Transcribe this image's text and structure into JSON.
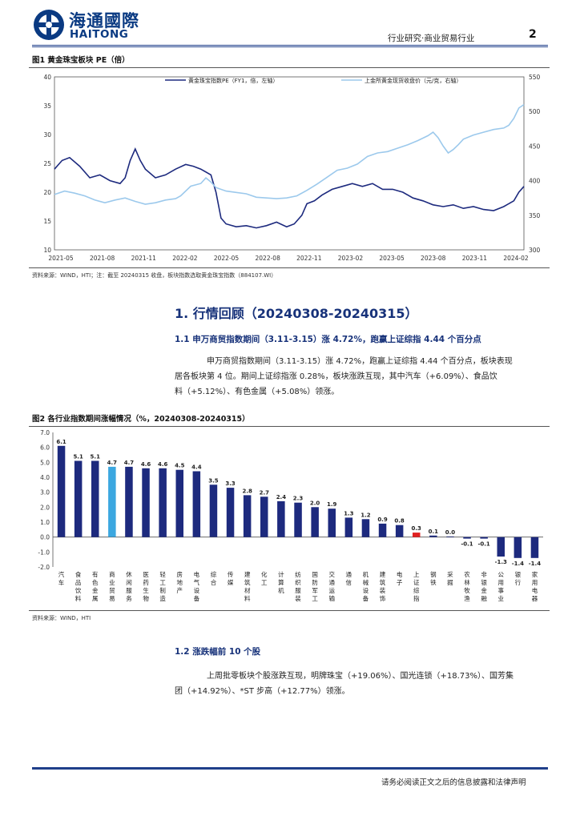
{
  "header": {
    "brand_cn": "海通國際",
    "brand_en": "HAITONG",
    "report_type": "行业研究·商业贸易行业",
    "page_number": "2"
  },
  "figure1": {
    "title": "图1  黄金珠宝板块 PE（倍）",
    "source": "资料来源：WIND，HTI；注：截至 20240315 收盘，板块指数选取黄金珠宝指数（884107.WI）"
  },
  "section1": {
    "title": "1.  行情回顾（20240308-20240315）"
  },
  "section1_1": {
    "title": "1.1 申万商贸指数期间（3.11-3.15）涨 4.72%，跑赢上证综指 4.44 个百分点",
    "para_line1": "申万商贸指数期间（3.11-3.15）涨 4.72%，跑赢上证综指 4.44 个百分点，板块表现",
    "para_line2": "居各板块第 4 位。期间上证综指涨 0.28%，板块涨跌互现，其中汽车（+6.09%）、食品饮",
    "para_line3": "料（+5.12%）、有色金属（+5.08%）领涨。"
  },
  "figure2": {
    "title": "图2  各行业指数期间涨幅情况（%，20240308-20240315）",
    "source": "资料来源：WIND，HTI"
  },
  "section1_2": {
    "title": "1.2 涨跌幅前 10 个股",
    "para_line1": "上周批零板块个股涨跌互现，明牌珠宝（+19.06%）、国光连锁（+18.73%）、国芳集",
    "para_line2": "团（+14.92%）、*ST 步高（+12.77%）领涨。"
  },
  "footer": {
    "disclaimer": "请务必阅读正文之后的信息披露和法律声明"
  },
  "chart_data": [
    {
      "type": "line",
      "title": "黄金珠宝板块 PE（倍）",
      "x_ticks": [
        "2021-05",
        "2021-08",
        "2021-11",
        "2022-02",
        "2022-05",
        "2022-08",
        "2022-11",
        "2023-02",
        "2023-05",
        "2023-08",
        "2023-11",
        "2024-02"
      ],
      "ylim_left": [
        10,
        40
      ],
      "yticks_left": [
        "40",
        "35",
        "30",
        "25",
        "20",
        "15",
        "10"
      ],
      "ylim_right": [
        300,
        550
      ],
      "yticks_right": [
        "550",
        "500",
        "450",
        "400",
        "350",
        "300"
      ],
      "grid": false,
      "legend_position": "top",
      "series": [
        {
          "name": "黄金珠宝指数PE（FY1，倍，左轴）",
          "axis": "left",
          "color": "#1d2a7e",
          "points": [
            [
              0,
              24
            ],
            [
              3,
              25.5
            ],
            [
              6,
              26
            ],
            [
              10,
              24.5
            ],
            [
              14,
              22.5
            ],
            [
              18,
              23
            ],
            [
              22,
              22
            ],
            [
              26,
              21.5
            ],
            [
              28,
              22.5
            ],
            [
              30,
              25.5
            ],
            [
              32,
              27.5
            ],
            [
              34,
              25.5
            ],
            [
              36,
              24
            ],
            [
              40,
              22.5
            ],
            [
              44,
              23
            ],
            [
              48,
              24
            ],
            [
              52,
              24.8
            ],
            [
              55,
              24.5
            ],
            [
              58,
              24
            ],
            [
              62,
              23
            ],
            [
              64,
              20
            ],
            [
              66,
              15.5
            ],
            [
              68,
              14.5
            ],
            [
              72,
              14
            ],
            [
              76,
              14.2
            ],
            [
              80,
              13.8
            ],
            [
              84,
              14.2
            ],
            [
              88,
              14.8
            ],
            [
              92,
              14
            ],
            [
              95,
              14.5
            ],
            [
              98,
              16
            ],
            [
              100,
              18
            ],
            [
              103,
              18.5
            ],
            [
              106,
              19.5
            ],
            [
              110,
              20.5
            ],
            [
              114,
              21
            ],
            [
              118,
              21.5
            ],
            [
              122,
              21
            ],
            [
              126,
              21.5
            ],
            [
              130,
              20.5
            ],
            [
              134,
              20.5
            ],
            [
              138,
              20
            ],
            [
              142,
              19
            ],
            [
              146,
              18.5
            ],
            [
              150,
              17.8
            ],
            [
              154,
              17.5
            ],
            [
              158,
              17.8
            ],
            [
              162,
              17.2
            ],
            [
              166,
              17.5
            ],
            [
              170,
              17
            ],
            [
              174,
              16.8
            ],
            [
              178,
              17.5
            ],
            [
              182,
              18.5
            ],
            [
              184,
              20
            ],
            [
              186,
              21
            ]
          ]
        },
        {
          "name": "上金所黄金现货收盘价（元/克，右轴）",
          "axis": "right",
          "color": "#9cc9ec",
          "points": [
            [
              0,
              380
            ],
            [
              4,
              385
            ],
            [
              8,
              382
            ],
            [
              12,
              378
            ],
            [
              16,
              372
            ],
            [
              20,
              368
            ],
            [
              24,
              372
            ],
            [
              28,
              375
            ],
            [
              32,
              370
            ],
            [
              36,
              366
            ],
            [
              40,
              368
            ],
            [
              44,
              372
            ],
            [
              48,
              374
            ],
            [
              50,
              378
            ],
            [
              54,
              392
            ],
            [
              58,
              396
            ],
            [
              60,
              404
            ],
            [
              62,
              398
            ],
            [
              64,
              390
            ],
            [
              68,
              385
            ],
            [
              72,
              383
            ],
            [
              76,
              381
            ],
            [
              80,
              376
            ],
            [
              84,
              375
            ],
            [
              88,
              374
            ],
            [
              92,
              375
            ],
            [
              96,
              378
            ],
            [
              100,
              386
            ],
            [
              104,
              395
            ],
            [
              108,
              405
            ],
            [
              112,
              415
            ],
            [
              116,
              418
            ],
            [
              120,
              424
            ],
            [
              124,
              435
            ],
            [
              128,
              440
            ],
            [
              132,
              442
            ],
            [
              136,
              447
            ],
            [
              140,
              452
            ],
            [
              144,
              458
            ],
            [
              148,
              465
            ],
            [
              150,
              470
            ],
            [
              152,
              462
            ],
            [
              154,
              450
            ],
            [
              156,
              440
            ],
            [
              158,
              445
            ],
            [
              160,
              452
            ],
            [
              162,
              460
            ],
            [
              166,
              466
            ],
            [
              170,
              470
            ],
            [
              174,
              474
            ],
            [
              178,
              476
            ],
            [
              180,
              480
            ],
            [
              182,
              490
            ],
            [
              184,
              505
            ],
            [
              186,
              510
            ]
          ]
        }
      ]
    },
    {
      "type": "bar",
      "title": "各行业指数期间涨幅情况（%，20240308-20240315）",
      "ylim": [
        -2.0,
        7.0
      ],
      "yticks": [
        "7.0",
        "6.0",
        "5.0",
        "4.0",
        "3.0",
        "2.0",
        "1.0",
        "0.0",
        "-1.0",
        "-2.0"
      ],
      "categories": [
        "汽车",
        "食品饮料",
        "有色金属",
        "商业贸易",
        "休闲服务",
        "医药生物",
        "轻工制造",
        "房地产",
        "电气设备",
        "综合",
        "传媒",
        "建筑材料",
        "化工",
        "计算机",
        "纺织服装",
        "国防军工",
        "交通运输",
        "通信",
        "机械设备",
        "建筑装饰",
        "电子",
        "上证综指",
        "钢铁",
        "采掘",
        "农林牧渔",
        "非银金融",
        "公用事业",
        "银行",
        "家用电器"
      ],
      "values": [
        6.1,
        5.1,
        5.1,
        4.7,
        4.7,
        4.6,
        4.6,
        4.5,
        4.4,
        3.5,
        3.3,
        2.8,
        2.7,
        2.4,
        2.3,
        2.0,
        1.9,
        1.3,
        1.2,
        0.9,
        0.8,
        0.3,
        0.1,
        0.0,
        -0.1,
        -0.1,
        -1.3,
        -1.4,
        -1.4
      ],
      "labels": [
        "6.1",
        "5.1",
        "5.1",
        "4.7",
        "4.7",
        "4.6",
        "4.6",
        "4.5",
        "4.4",
        "3.5",
        "3.3",
        "2.8",
        "2.7",
        "2.4",
        "2.3",
        "2.0",
        "1.9",
        "1.3",
        "1.2",
        "0.9",
        "0.8",
        "0.3",
        "0.1",
        "0.0",
        "-0.1",
        "-0.1",
        "-1.3",
        "-1.4",
        "-1.4"
      ],
      "colors": {
        "default": "#1d2a7e",
        "商业贸易": "#3ba7e0",
        "上证综指": "#e02020"
      }
    }
  ]
}
